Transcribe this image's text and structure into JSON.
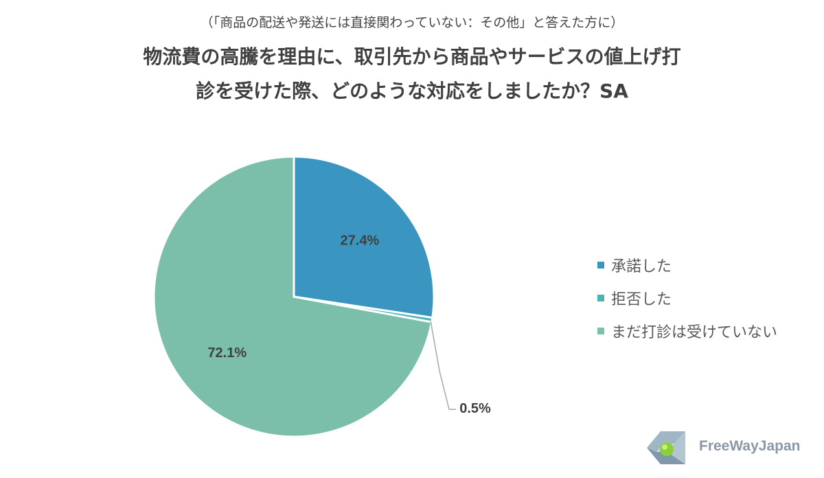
{
  "header": {
    "subtitle": "（「商品の配送や発送には直接関わっていない：その他」と答えた方に）",
    "title_line1": "物流費の高騰を理由に、取引先から商品やサービスの値上げ打",
    "title_line2": "診を受けた際、どのような対応をしましたか？SA"
  },
  "chart_data": {
    "type": "pie",
    "series": [
      {
        "name": "承諾した",
        "value": 27.4,
        "label": "27.4%",
        "color": "#3a96c0"
      },
      {
        "name": "拒否した",
        "value": 0.5,
        "label": "0.5%",
        "color": "#4db3b3"
      },
      {
        "name": "まだ打診は受けていない",
        "value": 72.1,
        "label": "72.1%",
        "color": "#7bbfab"
      }
    ],
    "legend_position": "right"
  },
  "legend": {
    "items": [
      {
        "label": "承諾した",
        "color": "#3a96c0"
      },
      {
        "label": "拒否した",
        "color": "#4db3b3"
      },
      {
        "label": "まだ打診は受けていない",
        "color": "#7bbfab"
      }
    ]
  },
  "logo": {
    "text": "FreeWayJapan",
    "icon": "freewayjapan-logo-icon"
  }
}
